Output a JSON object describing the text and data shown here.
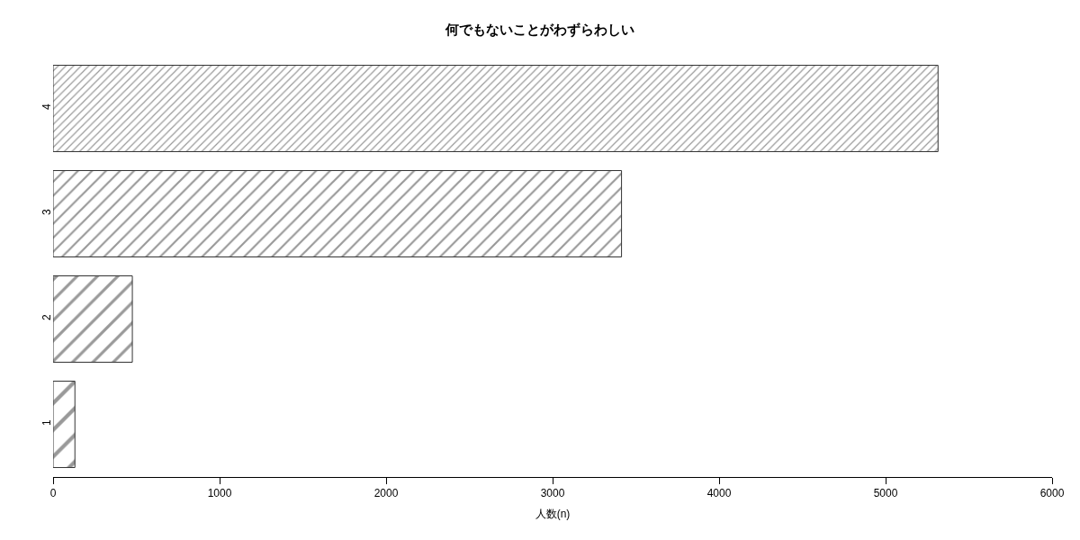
{
  "chart_data": {
    "type": "bar",
    "orientation": "horizontal",
    "title": "何でもないことがわずらわしい",
    "xlabel": "人数(n)",
    "categories": [
      "4",
      "3",
      "2",
      "1"
    ],
    "values": [
      5315,
      3414,
      476,
      131
    ],
    "color": "#333333",
    "xlim": [
      0,
      6000
    ],
    "xticks": [
      0,
      1000,
      2000,
      3000,
      4000,
      5000,
      6000
    ]
  }
}
